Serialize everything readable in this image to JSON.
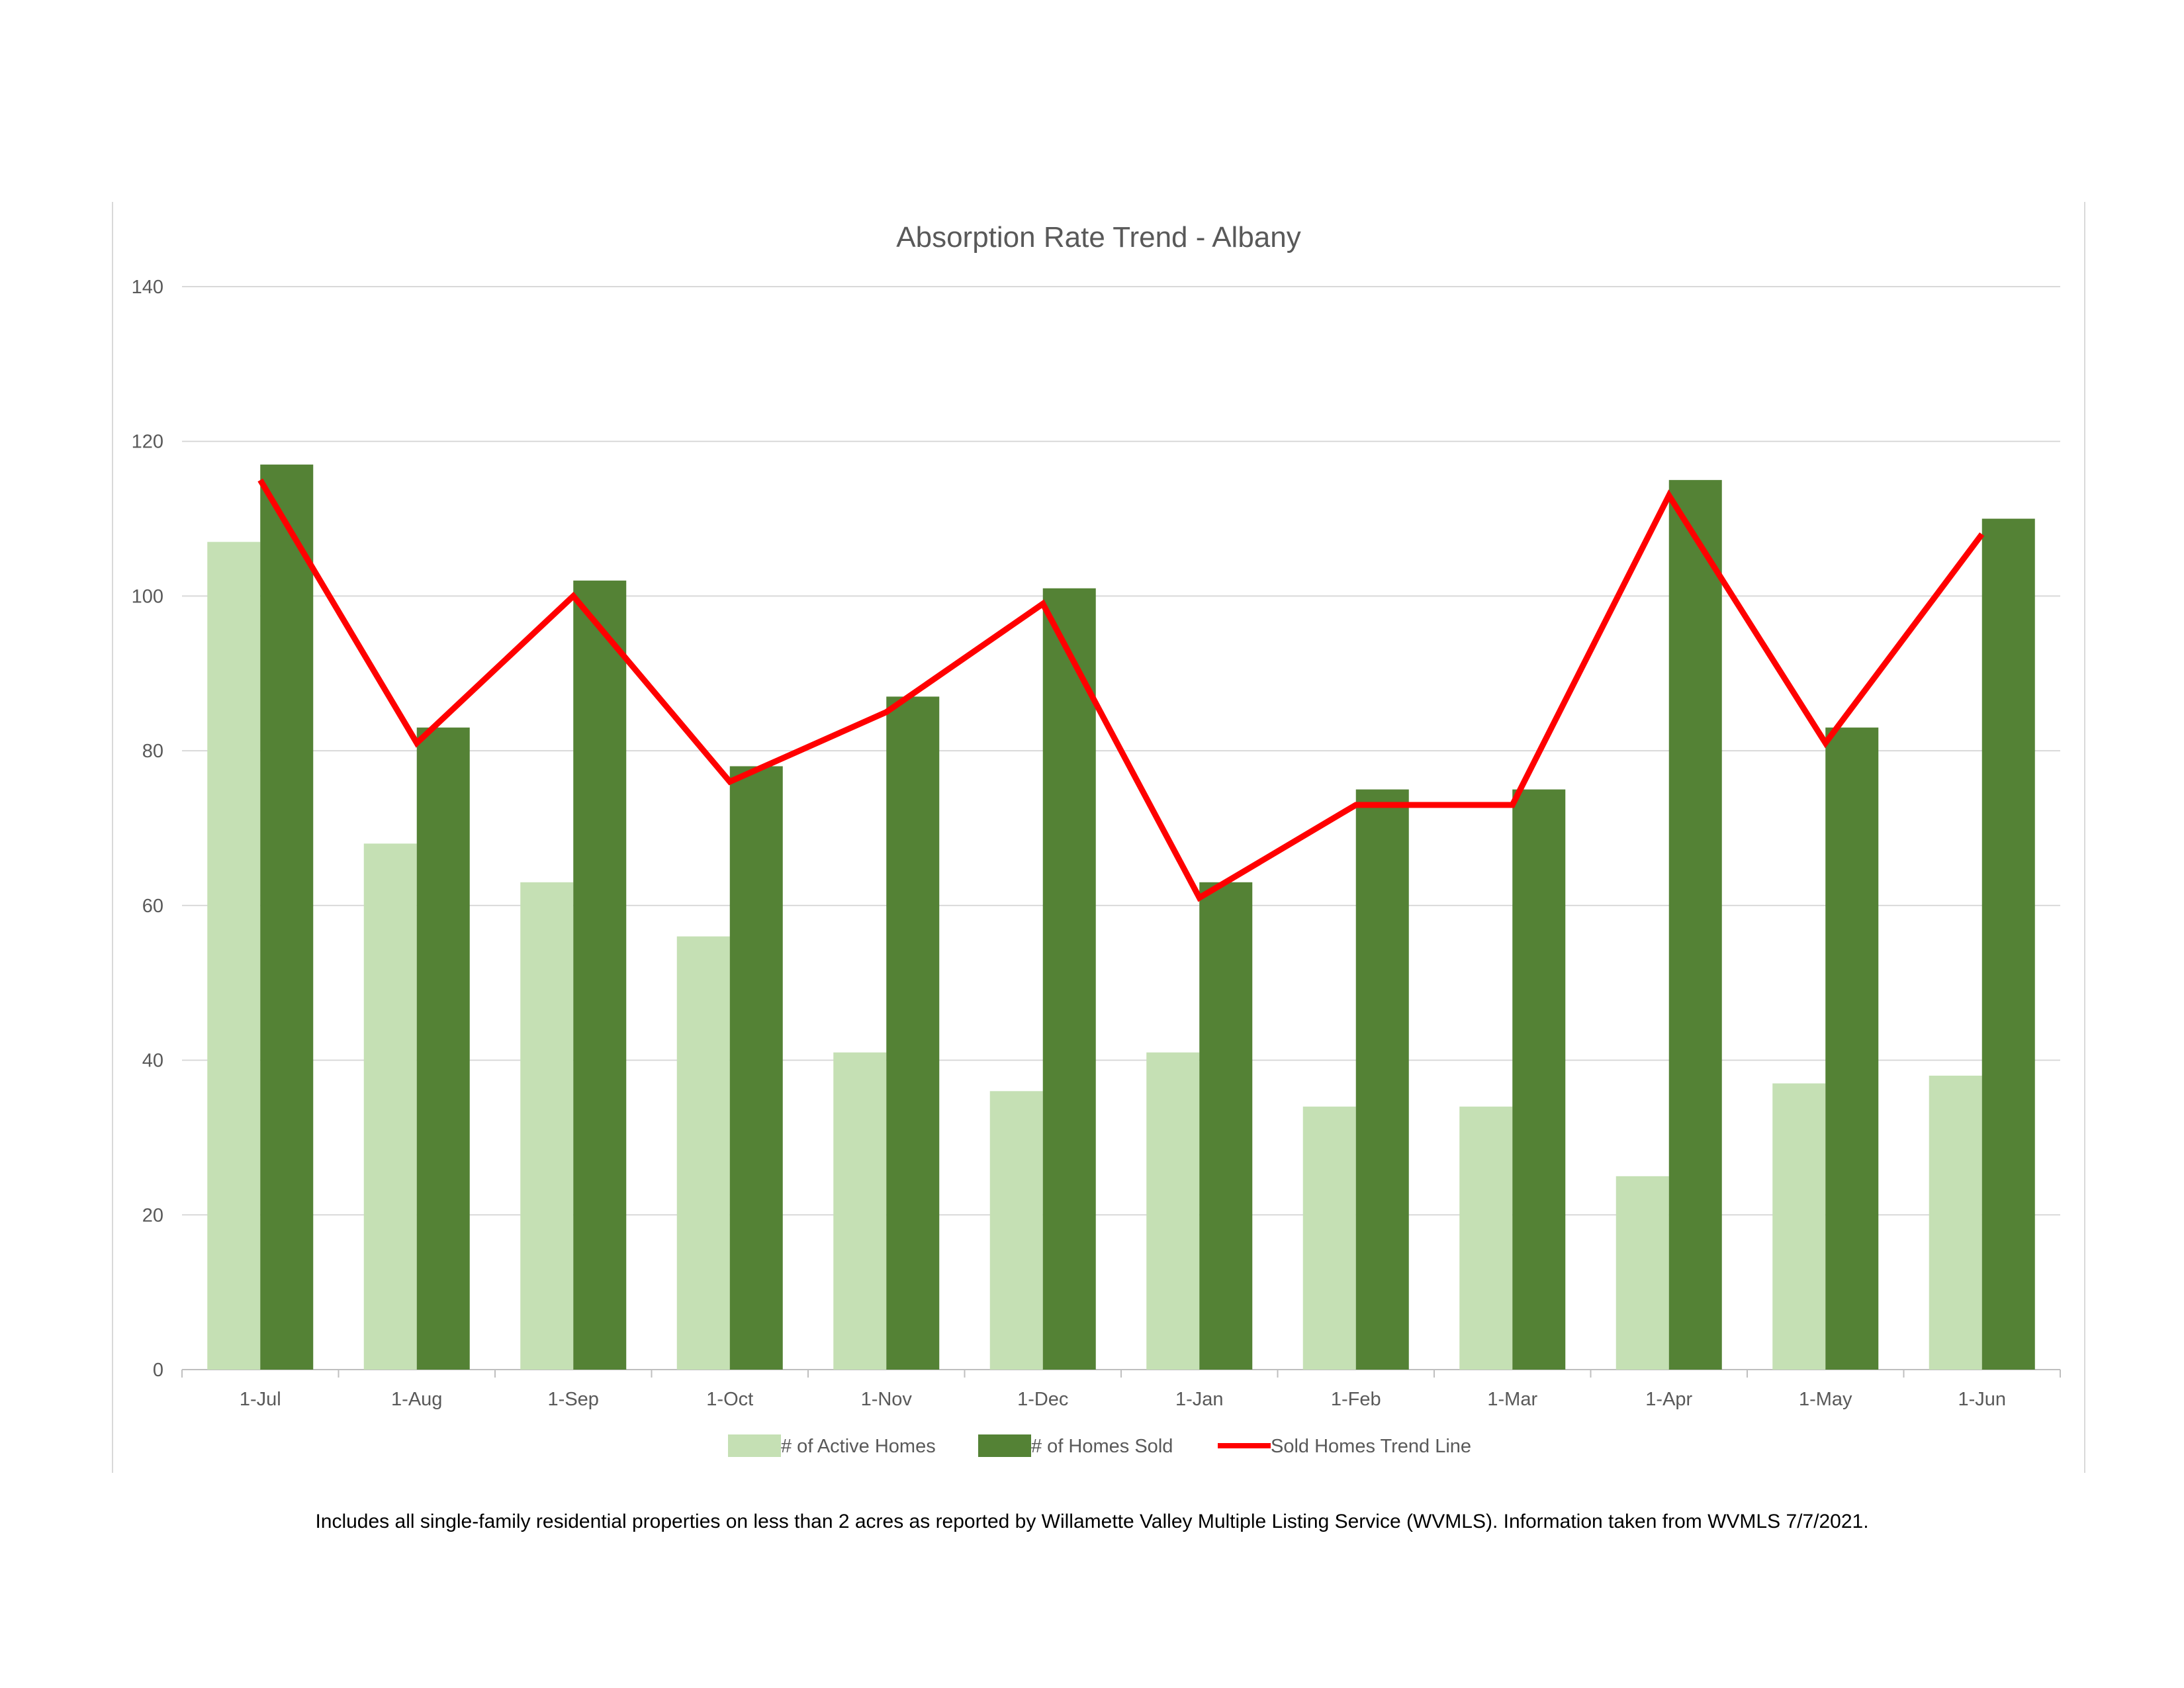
{
  "chart_data": {
    "type": "bar",
    "title": "Absorption Rate Trend - Albany",
    "categories": [
      "1-Jul",
      "1-Aug",
      "1-Sep",
      "1-Oct",
      "1-Nov",
      "1-Dec",
      "1-Jan",
      "1-Feb",
      "1-Mar",
      "1-Apr",
      "1-May",
      "1-Jun"
    ],
    "series": [
      {
        "name": "# of Active Homes",
        "kind": "bar",
        "color": "#c5e0b4",
        "values": [
          107,
          68,
          63,
          56,
          41,
          36,
          41,
          34,
          34,
          25,
          37,
          38
        ]
      },
      {
        "name": "# of Homes Sold",
        "kind": "bar",
        "color": "#548235",
        "values": [
          117,
          83,
          102,
          78,
          87,
          101,
          63,
          75,
          75,
          115,
          83,
          110
        ]
      },
      {
        "name": "Sold Homes Trend Line",
        "kind": "line",
        "color": "#ff0000",
        "values": [
          115,
          81,
          100,
          76,
          85,
          99,
          61,
          73,
          73,
          113,
          81,
          108
        ]
      }
    ],
    "yticks": [
      0,
      20,
      40,
      60,
      80,
      100,
      120,
      140
    ],
    "ylim": [
      0,
      140
    ],
    "grid": true,
    "legend_position": "bottom",
    "xlabel": "",
    "ylabel": ""
  },
  "footnote": "Includes all single-family residential properties on less than 2 acres as reported by Willamette Valley Multiple Listing Service (WVMLS). Information taken from WVMLS 7/7/2021."
}
